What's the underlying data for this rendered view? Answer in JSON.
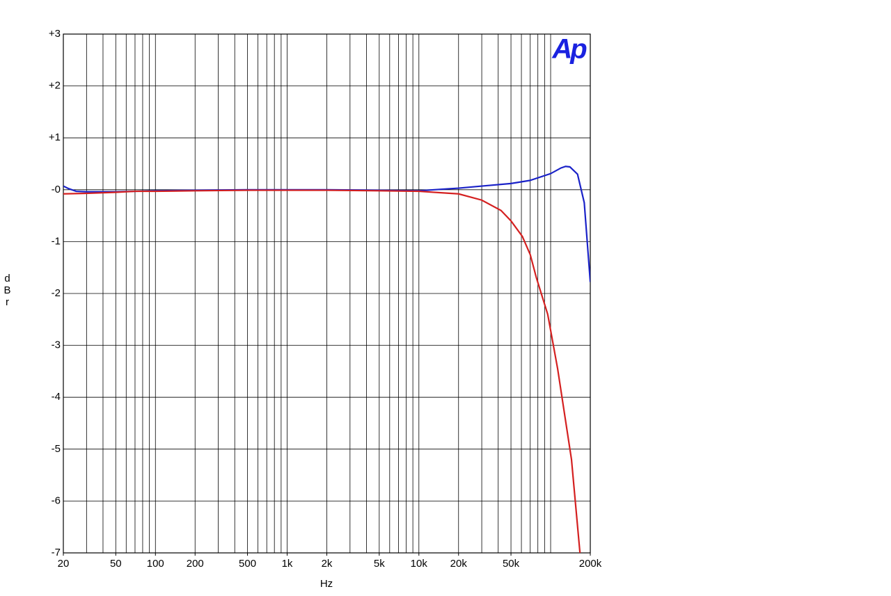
{
  "chart_data": {
    "type": "line",
    "logo": "Ap",
    "xlabel": "Hz",
    "ylabel": "dBr",
    "xscale": "log",
    "xlim": [
      20,
      200000
    ],
    "ylim": [
      -7,
      3
    ],
    "xticks": [
      20,
      50,
      100,
      200,
      500,
      {
        "value": 1000,
        "label": "1k"
      },
      {
        "value": 2000,
        "label": "2k"
      },
      {
        "value": 5000,
        "label": "5k"
      },
      {
        "value": 10000,
        "label": "10k"
      },
      {
        "value": 20000,
        "label": "20k"
      },
      {
        "value": 50000,
        "label": "50k"
      },
      {
        "value": 200000,
        "label": "200k"
      }
    ],
    "xgrid": [
      20,
      30,
      40,
      50,
      60,
      70,
      80,
      90,
      100,
      200,
      300,
      400,
      500,
      600,
      700,
      800,
      900,
      1000,
      2000,
      3000,
      4000,
      5000,
      6000,
      7000,
      8000,
      9000,
      10000,
      20000,
      30000,
      40000,
      50000,
      60000,
      70000,
      80000,
      90000,
      100000,
      200000
    ],
    "yticks": [
      {
        "value": 3,
        "label": "+3"
      },
      {
        "value": 2,
        "label": "+2"
      },
      {
        "value": 1,
        "label": "+1"
      },
      {
        "value": 0,
        "label": "-0"
      },
      -1,
      -2,
      -3,
      -4,
      -5,
      -6,
      -7
    ],
    "grid": true,
    "series": [
      {
        "color": "#1a22c8",
        "x": [
          20,
          22,
          25,
          30,
          50,
          70,
          100,
          200,
          500,
          1000,
          2000,
          5000,
          10000,
          15000,
          20000,
          30000,
          50000,
          70000,
          100000,
          120000,
          130000,
          140000,
          160000,
          180000,
          200000
        ],
        "values": [
          0.07,
          0.02,
          -0.03,
          -0.04,
          -0.04,
          -0.03,
          -0.02,
          -0.01,
          0,
          0,
          0,
          -0.01,
          -0.02,
          0.01,
          0.03,
          0.07,
          0.12,
          0.18,
          0.31,
          0.42,
          0.45,
          0.44,
          0.3,
          -0.25,
          -1.78
        ]
      },
      {
        "color": "#d42020",
        "x": [
          20,
          30,
          50,
          70,
          100,
          200,
          500,
          1000,
          2000,
          5000,
          10000,
          15000,
          20000,
          30000,
          42000,
          50000,
          61000,
          70000,
          78000,
          95000,
          113000,
          144000,
          167000
        ],
        "values": [
          -0.08,
          -0.07,
          -0.05,
          -0.03,
          -0.03,
          -0.02,
          -0.01,
          -0.01,
          -0.01,
          -0.02,
          -0.03,
          -0.06,
          -0.08,
          -0.2,
          -0.4,
          -0.6,
          -0.9,
          -1.25,
          -1.7,
          -2.4,
          -3.45,
          -5.2,
          -7
        ]
      }
    ]
  }
}
